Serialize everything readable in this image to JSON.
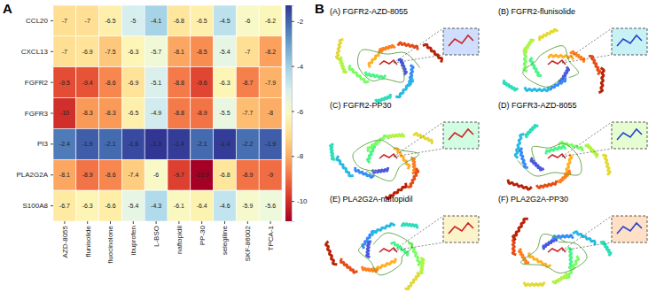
{
  "chart_data": {
    "type": "heatmap",
    "rows": [
      "CCL20",
      "CXCL13",
      "FGFR2",
      "FGFR3",
      "PI3",
      "PLA2G2A",
      "S100A8"
    ],
    "columns": [
      "AZD-8055",
      "flunisolide",
      "fluocinolone",
      "ibuprofen",
      "L-BSO",
      "naftopidil",
      "PP-30",
      "selegiline",
      "SKF-86002",
      "TPCA-1"
    ],
    "cells": [
      [
        -7,
        -7,
        -6.5,
        -5,
        -4.1,
        -6.8,
        -6.5,
        -4.5,
        -6,
        -6.2
      ],
      [
        -7,
        -6.9,
        -7.5,
        -6.3,
        -5.7,
        -8.1,
        -8.5,
        -5.4,
        -7,
        -8.2
      ],
      [
        -9.5,
        -9.4,
        -8.6,
        -6.9,
        -5.1,
        -8.8,
        -9.6,
        -6.3,
        -8.7,
        -7.9
      ],
      [
        -10,
        -8.3,
        -8.3,
        -6.5,
        -4.9,
        -8.8,
        -8.9,
        -5.5,
        -7.7,
        -8
      ],
      [
        -2.4,
        -1.9,
        -2.1,
        -1.6,
        -1.3,
        -1.4,
        -2.1,
        -1.4,
        -2.2,
        -1.9
      ],
      [
        -8.1,
        -8.9,
        -8.6,
        -7.4,
        -6,
        -9.7,
        -10.9,
        -6.8,
        -8.9,
        -9
      ],
      [
        -6.7,
        -6.3,
        -6.6,
        -5.4,
        -4.3,
        -6.1,
        -6.4,
        -4.6,
        -5.9,
        -5.6
      ]
    ],
    "data_labels": true,
    "colorbar": {
      "range": [
        -10.9,
        -1.3
      ],
      "ticks": [
        -10,
        -8,
        -6,
        -4,
        -2
      ]
    }
  },
  "panel_labels": [
    "A",
    "B"
  ],
  "structures": [
    "(A) FGFR2-AZD-8055",
    "(B) FGFR2-flunisolide",
    "(C) FGFR2-PP30",
    "(D) FGFR3-AZD-8055",
    "(E) PLA2G2A-naftopidil",
    "(F) PLA2G2A-PP30"
  ]
}
